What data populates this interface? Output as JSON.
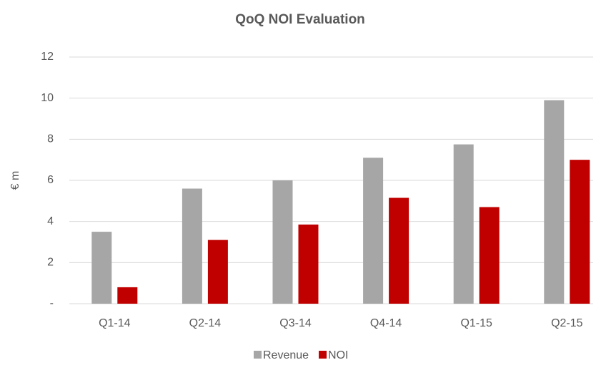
{
  "chart_data": {
    "type": "bar",
    "title": "QoQ NOI Evaluation",
    "y_label": "€ m",
    "categories": [
      "Q1-14",
      "Q2-14",
      "Q3-14",
      "Q4-14",
      "Q1-15",
      "Q2-15"
    ],
    "series": [
      {
        "name": "Revenue",
        "color": "#a6a6a6",
        "values": [
          3.5,
          5.6,
          6.0,
          7.1,
          7.75,
          9.9
        ]
      },
      {
        "name": "NOI",
        "color": "#c00000",
        "values": [
          0.8,
          3.1,
          3.85,
          5.15,
          4.7,
          7.0
        ]
      }
    ],
    "ylim": [
      0,
      12
    ],
    "yticks": [
      {
        "value": 0,
        "label": "-"
      },
      2,
      4,
      6,
      8,
      10,
      12
    ],
    "grid": true,
    "legend": "bottom"
  }
}
